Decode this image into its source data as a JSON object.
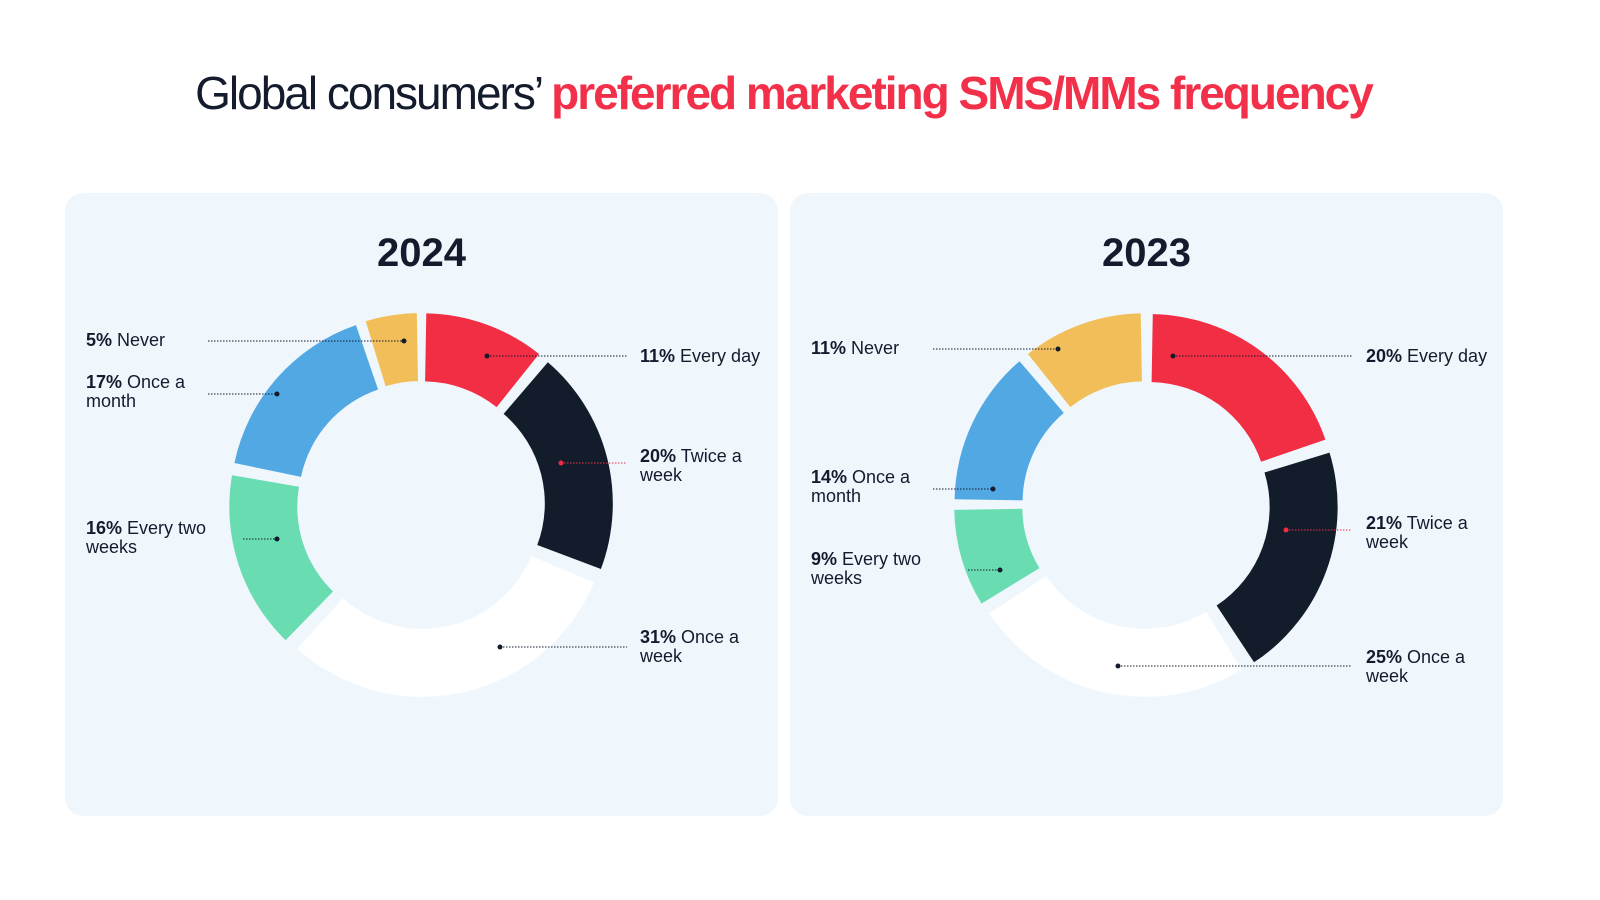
{
  "title": {
    "part1": "Global consumers’ ",
    "part2": "preferred marketing SMS/MMs frequency"
  },
  "colors": {
    "title_dark": "#141b2d",
    "accent_red": "#f2304a",
    "panel_bg": "#eff7fd"
  },
  "chart_data": [
    {
      "type": "pie",
      "title": "2024",
      "categories": [
        "Every day",
        "Twice a week",
        "Once a week",
        "Every two weeks",
        "Once a month",
        "Never"
      ],
      "values": [
        11,
        20,
        31,
        16,
        17,
        5
      ],
      "value_labels": [
        "11%",
        "20%",
        "31%",
        "16%",
        "17%",
        "5%"
      ],
      "colors": [
        "#f22e45",
        "#131c2b",
        "#ffffff",
        "#6adcb2",
        "#52a8e2",
        "#f2be5a"
      ],
      "donut": true
    },
    {
      "type": "pie",
      "title": "2023",
      "categories": [
        "Every day",
        "Twice a week",
        "Once a week",
        "Every two weeks",
        "Once a month",
        "Never"
      ],
      "values": [
        20,
        21,
        25,
        9,
        14,
        11
      ],
      "value_labels": [
        "20%",
        "21%",
        "25%",
        "9%",
        "14%",
        "11%"
      ],
      "colors": [
        "#f22e45",
        "#131c2b",
        "#ffffff",
        "#6adcb2",
        "#52a8e2",
        "#f2be5a"
      ],
      "donut": true
    }
  ]
}
